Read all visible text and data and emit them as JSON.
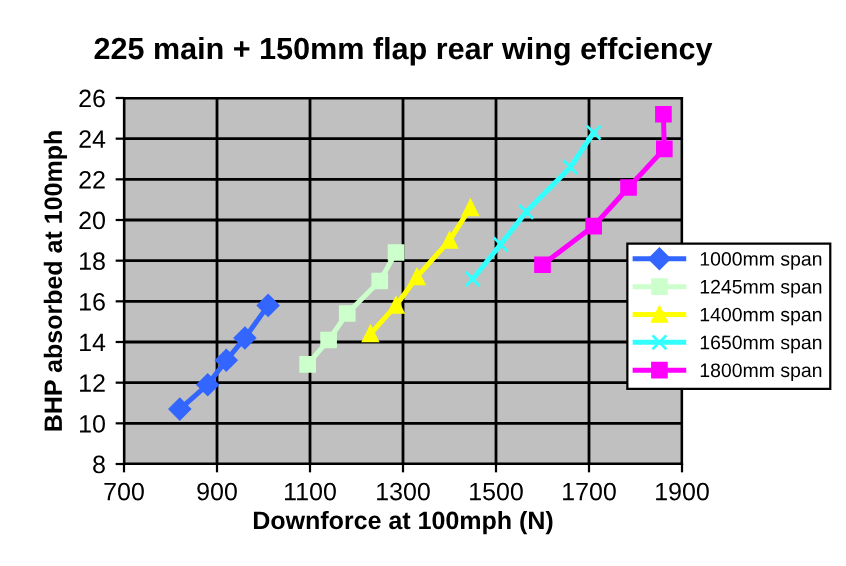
{
  "chart_data": {
    "type": "line",
    "title": "225 main + 150mm flap rear wing effciency",
    "xlabel": "Downforce at 100mph (N)",
    "ylabel": "BHP absorbed at 100mph",
    "xlim": [
      700,
      1900
    ],
    "xticks": [
      700,
      900,
      1100,
      1300,
      1500,
      1700,
      1900
    ],
    "ylim": [
      8,
      26
    ],
    "yticks": [
      8,
      10,
      12,
      14,
      16,
      18,
      20,
      22,
      24,
      26
    ],
    "grid": true,
    "legend": "right",
    "series": [
      {
        "name": "1000mm span",
        "color": "#3366ff",
        "marker": "diamond",
        "x": [
          820,
          880,
          920,
          960,
          1010
        ],
        "values": [
          10.7,
          11.9,
          13.1,
          14.2,
          15.8
        ]
      },
      {
        "name": "1245mm span",
        "color": "#ccffcc",
        "marker": "square",
        "x": [
          1095,
          1140,
          1180,
          1250,
          1285
        ],
        "values": [
          12.9,
          14.1,
          15.4,
          17.0,
          18.4
        ]
      },
      {
        "name": "1400mm span",
        "color": "#ffff00",
        "marker": "triangle",
        "x": [
          1230,
          1285,
          1330,
          1400,
          1445
        ],
        "values": [
          14.4,
          15.8,
          17.2,
          19.0,
          20.6
        ]
      },
      {
        "name": "1650mm span",
        "color": "#33ffff",
        "marker": "cross",
        "x": [
          1450,
          1510,
          1565,
          1660,
          1710
        ],
        "values": [
          17.1,
          18.8,
          20.4,
          22.6,
          24.3
        ]
      },
      {
        "name": "1800mm span",
        "color": "#ff00ff",
        "marker": "square",
        "x": [
          1600,
          1710,
          1785,
          1862,
          1860
        ],
        "values": [
          17.8,
          19.7,
          21.6,
          23.5,
          25.2
        ]
      }
    ]
  }
}
